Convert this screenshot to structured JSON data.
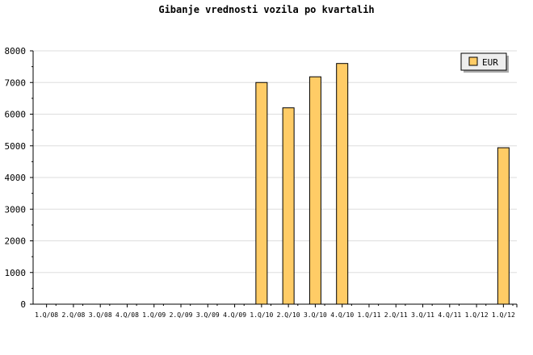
{
  "chart_data": {
    "type": "bar",
    "title": "Gibanje vrednosti vozila po kvartalih",
    "xlabel": "",
    "ylabel": "",
    "categories": [
      "1.Q/08",
      "2.Q/08",
      "3.Q/08",
      "4.Q/08",
      "1.Q/09",
      "2.Q/09",
      "3.Q/09",
      "4.Q/09",
      "1.Q/10",
      "2.Q/10",
      "3.Q/10",
      "4.Q/10",
      "1.Q/11",
      "2.Q/11",
      "3.Q/11",
      "4.Q/11",
      "1.Q/12",
      "1.Q/12"
    ],
    "series": [
      {
        "name": "EUR",
        "values": [
          0,
          0,
          0,
          0,
          0,
          0,
          0,
          0,
          7000,
          6200,
          7180,
          7600,
          0,
          0,
          0,
          0,
          0,
          4940
        ]
      }
    ],
    "ylim": [
      0,
      8000
    ],
    "yticks": [
      0,
      1000,
      2000,
      3000,
      4000,
      5000,
      6000,
      7000,
      8000
    ],
    "grid": true,
    "legend": "top-right",
    "colors": {
      "bar": "#ffcc66",
      "bar_stroke": "#000000",
      "grid": "#dddddd",
      "legend_bg": "#eeeeee"
    }
  }
}
